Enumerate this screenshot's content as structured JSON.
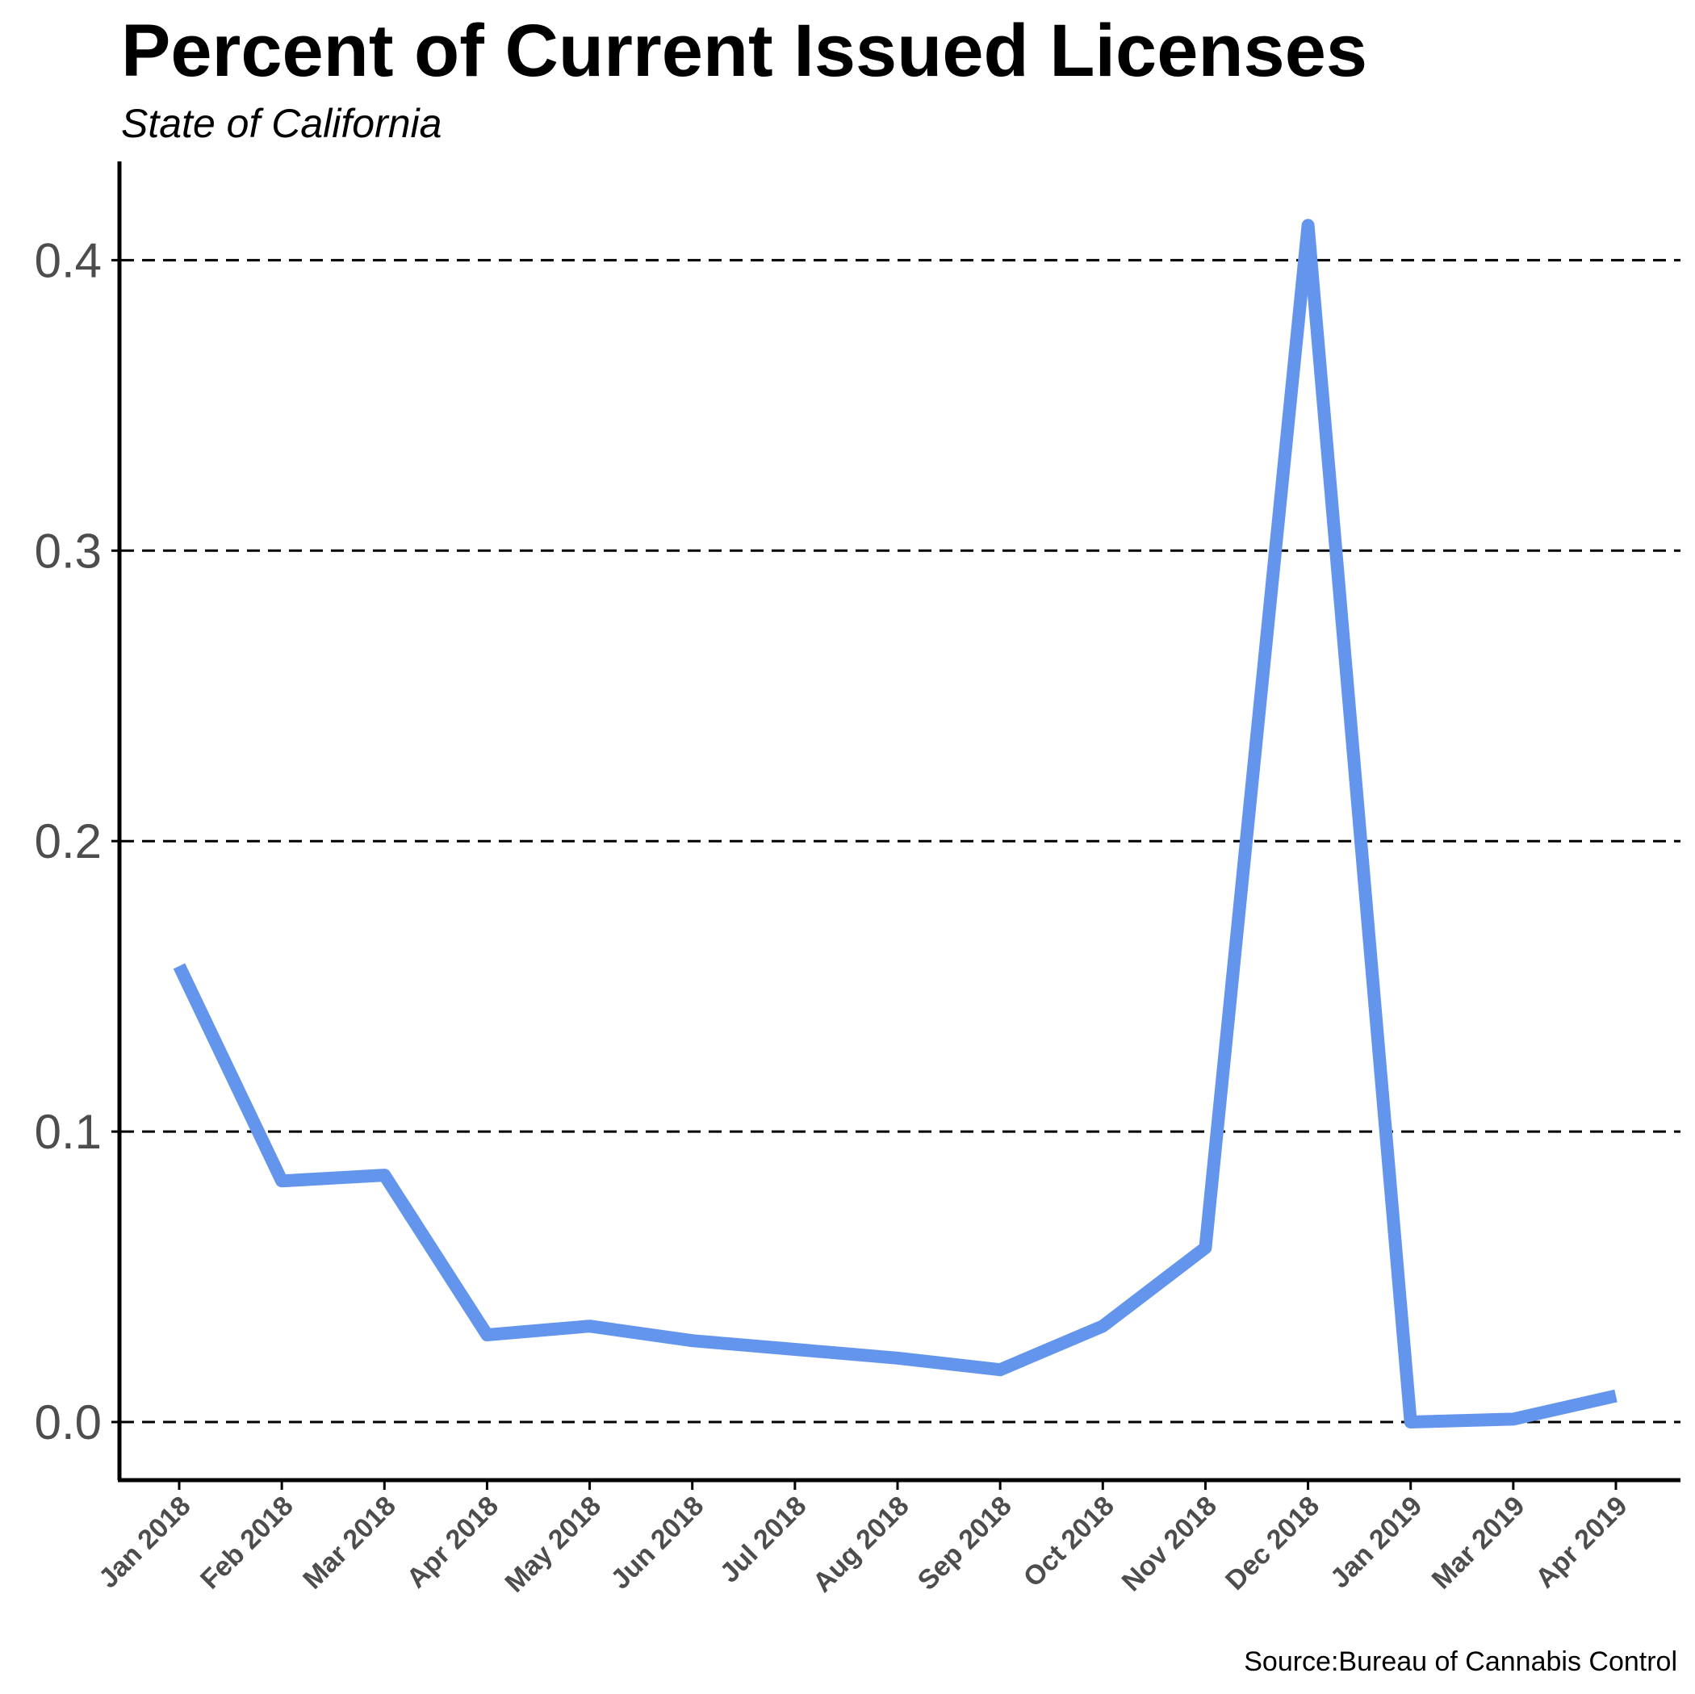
{
  "chart_data": {
    "type": "line",
    "title": "Percent of Current Issued Licenses",
    "subtitle": "State of California",
    "caption": "Source:Bureau of Cannabis Control",
    "xlabel": "",
    "ylabel": "",
    "categories": [
      "Jan 2018",
      "Feb 2018",
      "Mar 2018",
      "Apr 2018",
      "May 2018",
      "Jun 2018",
      "Jul 2018",
      "Aug 2018",
      "Sep 2018",
      "Oct 2018",
      "Nov 2018",
      "Dec 2018",
      "Jan 2019",
      "Mar 2019",
      "Apr 2019"
    ],
    "series": [
      {
        "color": "#6495ed",
        "values": [
          0.157,
          0.083,
          0.085,
          0.03,
          0.033,
          0.028,
          0.025,
          0.022,
          0.018,
          0.033,
          0.06,
          0.412,
          0.0,
          0.001,
          0.009
        ]
      }
    ],
    "yticks": [
      "0.0",
      "0.1",
      "0.2",
      "0.3",
      "0.4"
    ],
    "ytick_values": [
      0.0,
      0.1,
      0.2,
      0.3,
      0.4
    ],
    "ylim": [
      -0.02,
      0.434
    ],
    "grid": "horizontal-dashed",
    "legend": "none"
  }
}
